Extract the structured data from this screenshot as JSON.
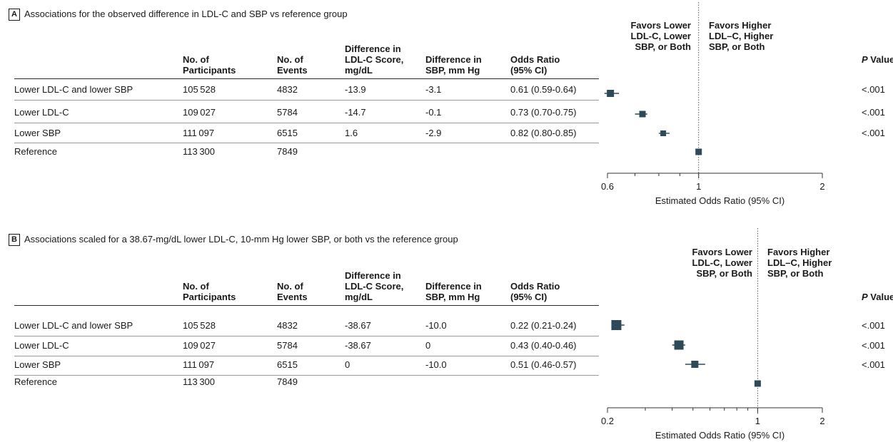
{
  "columns": {
    "participants": "No. of\nParticipants",
    "events": "No. of\nEvents",
    "ldl": "Difference in\nLDL-C Score,\nmg/dL",
    "sbp": "Difference in\nSBP, mm Hg",
    "or": "Odds Ratio\n(95% CI)",
    "pvalue_italic": "P",
    "pvalue_rest": " Value"
  },
  "favors": {
    "left": "Favors Lower\nLDL-C, Lower\nSBP, or Both",
    "right": "Favors Higher\nLDL–C, Higher\nSBP, or Both"
  },
  "panels": [
    {
      "letter": "A",
      "title": "Associations for the observed difference in LDL-C and SBP vs reference group",
      "rows": [
        {
          "group": "Lower LDL-C and lower SBP",
          "participants": "105 528",
          "events": "4832",
          "ldl": "-13.9",
          "sbp": "-3.1",
          "or_text": "0.61 (0.59-0.64)",
          "p": "<.001"
        },
        {
          "group": "Lower LDL-C",
          "participants": "109 027",
          "events": "5784",
          "ldl": "-14.7",
          "sbp": "-0.1",
          "or_text": "0.73 (0.70-0.75)",
          "p": "<.001"
        },
        {
          "group": "Lower SBP",
          "participants": "111 097",
          "events": "6515",
          "ldl": "1.6",
          "sbp": "-2.9",
          "or_text": "0.82 (0.80-0.85)",
          "p": "<.001"
        },
        {
          "group": "Reference",
          "participants": "113 300",
          "events": "7849",
          "ldl": "",
          "sbp": "",
          "or_text": "",
          "p": ""
        }
      ]
    },
    {
      "letter": "B",
      "title": "Associations scaled for a 38.67-mg/dL lower LDL-C, 10-mm Hg lower SBP, or both vs the reference group",
      "rows": [
        {
          "group": "Lower LDL-C and lower SBP",
          "participants": "105 528",
          "events": "4832",
          "ldl": "-38.67",
          "sbp": "-10.0",
          "or_text": "0.22 (0.21-0.24)",
          "p": "<.001"
        },
        {
          "group": "Lower LDL-C",
          "participants": "109 027",
          "events": "5784",
          "ldl": "-38.67",
          "sbp": "0",
          "or_text": "0.43 (0.40-0.46)",
          "p": "<.001"
        },
        {
          "group": "Lower SBP",
          "participants": "111 097",
          "events": "6515",
          "ldl": "0",
          "sbp": "-10.0",
          "or_text": "0.51 (0.46-0.57)",
          "p": "<.001"
        },
        {
          "group": "Reference",
          "participants": "113 300",
          "events": "7849",
          "ldl": "",
          "sbp": "",
          "or_text": "",
          "p": ""
        }
      ]
    }
  ],
  "chart_data": [
    {
      "type": "scatter",
      "title": "Associations for the observed difference in LDL-C and SBP vs reference group",
      "xlabel": "Estimated Odds Ratio (95% CI)",
      "xscale": "log",
      "xlim": [
        0.6,
        2
      ],
      "xticks": [
        0.6,
        1,
        2
      ],
      "xtick_labels": [
        "0.6",
        "1",
        "2"
      ],
      "reference_line": 1,
      "categories": [
        "Lower LDL-C and lower SBP",
        "Lower LDL-C",
        "Lower SBP",
        "Reference"
      ],
      "or": [
        0.61,
        0.73,
        0.82,
        1
      ],
      "ci_low": [
        0.59,
        0.7,
        0.8,
        1
      ],
      "ci_high": [
        0.64,
        0.75,
        0.85,
        1
      ],
      "marker_color": "#2e4a59"
    },
    {
      "type": "scatter",
      "title": "Associations scaled for a 38.67-mg/dL lower LDL-C, 10-mm Hg lower SBP, or both vs the reference group",
      "xlabel": "Estimated Odds Ratio (95% CI)",
      "xscale": "log",
      "xlim": [
        0.2,
        2
      ],
      "xticks": [
        0.2,
        1,
        2
      ],
      "xtick_labels": [
        "0.2",
        "1",
        "2"
      ],
      "reference_line": 1,
      "categories": [
        "Lower LDL-C and lower SBP",
        "Lower LDL-C",
        "Lower SBP",
        "Reference"
      ],
      "or": [
        0.22,
        0.43,
        0.51,
        1
      ],
      "ci_low": [
        0.21,
        0.4,
        0.46,
        1
      ],
      "ci_high": [
        0.24,
        0.46,
        0.57,
        1
      ],
      "marker_color": "#2e4a59"
    }
  ]
}
